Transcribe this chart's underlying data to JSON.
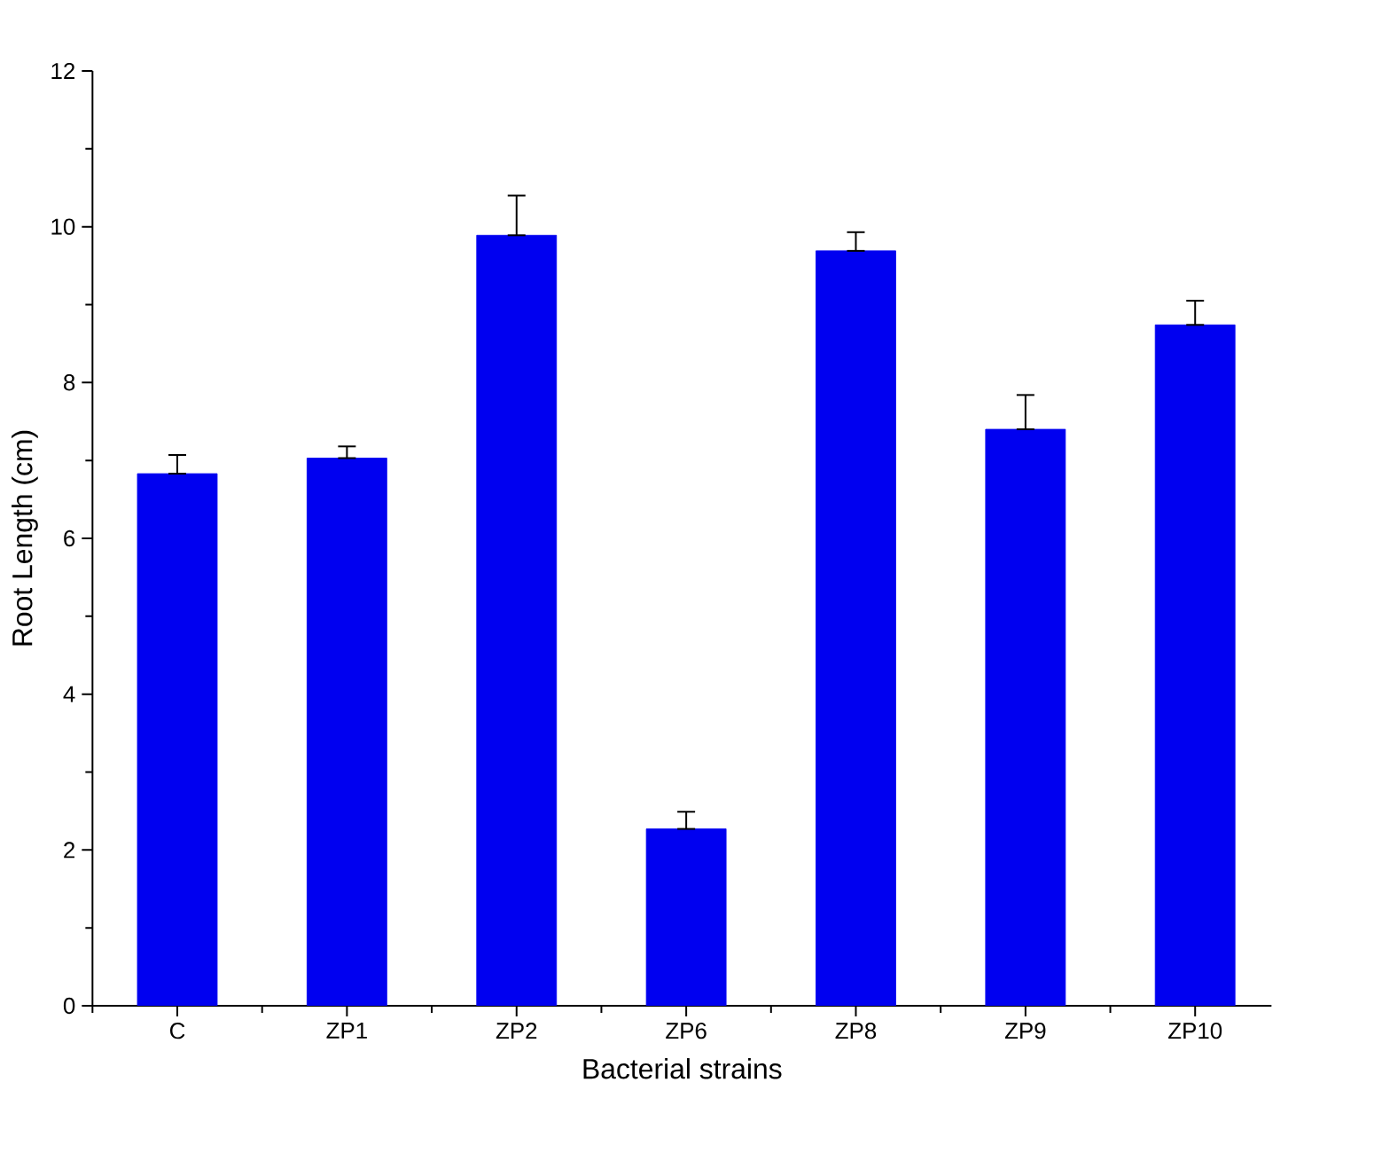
{
  "chart_data": {
    "type": "bar",
    "xlabel": "Bacterial strains",
    "ylabel": "Root Length (cm)",
    "categories": [
      "C",
      "ZP1",
      "ZP2",
      "ZP6",
      "ZP8",
      "ZP9",
      "ZP10"
    ],
    "values": [
      6.83,
      7.03,
      9.89,
      2.27,
      9.69,
      7.4,
      8.74
    ],
    "errors": [
      [
        6.83,
        7.07
      ],
      [
        7.03,
        7.18
      ],
      [
        9.89,
        10.4
      ],
      [
        2.27,
        2.49
      ],
      [
        9.69,
        9.93
      ],
      [
        7.4,
        7.84
      ],
      [
        8.74,
        9.05
      ]
    ],
    "color": "#0000f0",
    "ylim": [
      0,
      12
    ],
    "yticks": [
      0,
      2,
      4,
      6,
      8,
      10,
      12
    ],
    "grid": false
  }
}
